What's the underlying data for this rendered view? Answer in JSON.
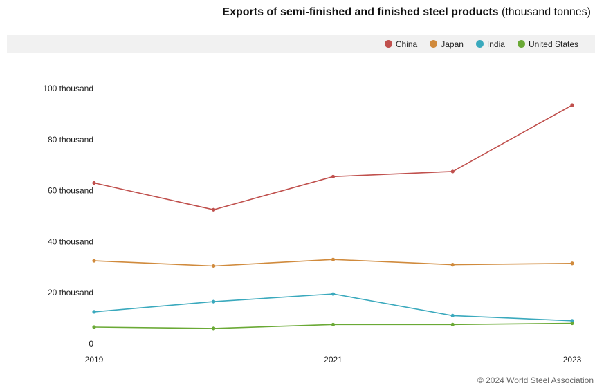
{
  "title": {
    "main": "Exports of semi-finished and finished steel products",
    "unit": "(thousand tonnes)"
  },
  "credit": "© 2024 World Steel Association",
  "chart_data": {
    "type": "line",
    "title": "Exports of semi-finished and finished steel products (thousand tonnes)",
    "xlabel": "",
    "ylabel": "",
    "x": [
      2019,
      2020,
      2021,
      2022,
      2023
    ],
    "x_tick_labels": [
      "2019",
      "2021",
      "2023"
    ],
    "x_ticks": [
      2019,
      2021,
      2023
    ],
    "y_ticks": [
      0,
      20000,
      40000,
      60000,
      80000,
      100000
    ],
    "y_tick_labels": [
      "0",
      "20 thousand",
      "40 thousand",
      "60 thousand",
      "80 thousand",
      "100 thousand"
    ],
    "ylim": [
      0,
      100000
    ],
    "grid": false,
    "legend_position": "top-right",
    "series": [
      {
        "name": "China",
        "color": "#c0504d",
        "values": [
          63000,
          52500,
          65500,
          67500,
          93500
        ]
      },
      {
        "name": "Japan",
        "color": "#d08a3c",
        "values": [
          32500,
          30500,
          33000,
          31000,
          31500
        ]
      },
      {
        "name": "India",
        "color": "#3aa9bd",
        "values": [
          12500,
          16500,
          19500,
          11000,
          9000
        ]
      },
      {
        "name": "United States",
        "color": "#6aa935",
        "values": [
          6500,
          6000,
          7500,
          7500,
          8000
        ]
      }
    ]
  }
}
